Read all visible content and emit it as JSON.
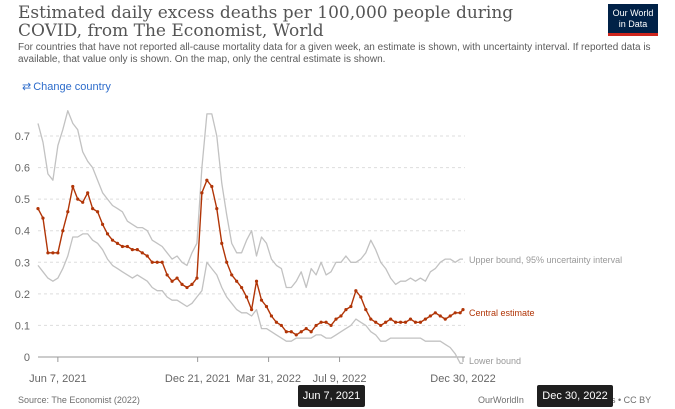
{
  "header": {
    "title": "Estimated daily excess deaths per 100,000 people during COVID, from The Economist, World",
    "subtitle": "For countries that have not reported all-cause mortality data for a given week, an estimate is shown, with uncertainty interval. If reported data is available, that value only is shown. On the map, only the central estimate is shown.",
    "logo_line1": "Our World",
    "logo_line2": "in Data"
  },
  "controls": {
    "change_country": "Change country",
    "change_icon": "swap-arrows-icon"
  },
  "footer": {
    "source": "Source: The Economist (2022)",
    "credit_left": "OurWorldIn",
    "credit_right": "s • CC BY"
  },
  "tooltips": {
    "start": "Jun 7, 2021",
    "end": "Dec 30, 2022"
  },
  "colors": {
    "central": "#b13507",
    "bounds": "#c2c2c2",
    "grid": "#dddddd"
  },
  "chart_data": {
    "type": "line",
    "title": "Estimated daily excess deaths per 100,000 people during COVID, from The Economist, World",
    "xlabel": "",
    "ylabel": "",
    "y_ticks": [
      0,
      0.1,
      0.2,
      0.3,
      0.4,
      0.5,
      0.6,
      0.7
    ],
    "ylim": [
      0,
      0.7
    ],
    "x_ticks": [
      "Jun 7, 2021",
      "Dec 21, 2021",
      "Mar 31, 2022",
      "Jul 9, 2022",
      "Dec 30, 2022"
    ],
    "x_range": [
      "2021-05-10",
      "2022-12-30"
    ],
    "x": [
      "2021-05-10",
      "2021-05-17",
      "2021-05-24",
      "2021-05-31",
      "2021-06-07",
      "2021-06-14",
      "2021-06-21",
      "2021-06-28",
      "2021-07-05",
      "2021-07-12",
      "2021-07-19",
      "2021-07-26",
      "2021-08-02",
      "2021-08-09",
      "2021-08-16",
      "2021-08-23",
      "2021-08-30",
      "2021-09-06",
      "2021-09-13",
      "2021-09-20",
      "2021-09-27",
      "2021-10-04",
      "2021-10-11",
      "2021-10-18",
      "2021-10-25",
      "2021-11-01",
      "2021-11-08",
      "2021-11-15",
      "2021-11-22",
      "2021-11-29",
      "2021-12-06",
      "2021-12-13",
      "2021-12-20",
      "2021-12-27",
      "2022-01-03",
      "2022-01-10",
      "2022-01-17",
      "2022-01-24",
      "2022-01-31",
      "2022-02-07",
      "2022-02-14",
      "2022-02-21",
      "2022-02-28",
      "2022-03-07",
      "2022-03-14",
      "2022-03-21",
      "2022-03-28",
      "2022-04-04",
      "2022-04-11",
      "2022-04-18",
      "2022-04-25",
      "2022-05-02",
      "2022-05-09",
      "2022-05-16",
      "2022-05-23",
      "2022-05-30",
      "2022-06-06",
      "2022-06-13",
      "2022-06-20",
      "2022-06-27",
      "2022-07-04",
      "2022-07-11",
      "2022-07-18",
      "2022-07-25",
      "2022-08-01",
      "2022-08-08",
      "2022-08-15",
      "2022-08-22",
      "2022-08-29",
      "2022-09-05",
      "2022-09-12",
      "2022-09-19",
      "2022-09-26",
      "2022-10-03",
      "2022-10-10",
      "2022-10-17",
      "2022-10-24",
      "2022-10-31",
      "2022-11-07",
      "2022-11-14",
      "2022-11-21",
      "2022-11-28",
      "2022-12-05",
      "2022-12-12",
      "2022-12-19",
      "2022-12-26",
      "2022-12-30"
    ],
    "series": [
      {
        "name": "Upper bound, 95% uncertainty interval",
        "values": [
          0.74,
          0.68,
          0.58,
          0.56,
          0.67,
          0.72,
          0.78,
          0.74,
          0.72,
          0.65,
          0.62,
          0.6,
          0.56,
          0.52,
          0.5,
          0.48,
          0.47,
          0.46,
          0.43,
          0.42,
          0.41,
          0.41,
          0.4,
          0.37,
          0.36,
          0.35,
          0.33,
          0.31,
          0.32,
          0.3,
          0.29,
          0.33,
          0.36,
          0.6,
          0.77,
          0.77,
          0.7,
          0.55,
          0.45,
          0.36,
          0.33,
          0.33,
          0.37,
          0.4,
          0.32,
          0.38,
          0.36,
          0.31,
          0.29,
          0.28,
          0.22,
          0.22,
          0.24,
          0.27,
          0.22,
          0.28,
          0.26,
          0.3,
          0.26,
          0.27,
          0.3,
          0.3,
          0.32,
          0.3,
          0.3,
          0.31,
          0.33,
          0.37,
          0.34,
          0.3,
          0.28,
          0.25,
          0.23,
          0.24,
          0.24,
          0.25,
          0.24,
          0.25,
          0.24,
          0.27,
          0.28,
          0.3,
          0.31,
          0.31,
          0.3,
          0.31,
          0.31
        ]
      },
      {
        "name": "Central estimate",
        "values": [
          0.47,
          0.44,
          0.33,
          0.33,
          0.33,
          0.4,
          0.46,
          0.54,
          0.5,
          0.49,
          0.52,
          0.47,
          0.46,
          0.42,
          0.39,
          0.37,
          0.36,
          0.35,
          0.35,
          0.34,
          0.34,
          0.33,
          0.32,
          0.3,
          0.3,
          0.3,
          0.26,
          0.24,
          0.25,
          0.23,
          0.22,
          0.23,
          0.25,
          0.52,
          0.56,
          0.54,
          0.47,
          0.36,
          0.3,
          0.26,
          0.24,
          0.22,
          0.19,
          0.15,
          0.24,
          0.18,
          0.16,
          0.13,
          0.11,
          0.1,
          0.08,
          0.08,
          0.07,
          0.08,
          0.09,
          0.08,
          0.1,
          0.11,
          0.11,
          0.1,
          0.12,
          0.13,
          0.15,
          0.16,
          0.21,
          0.19,
          0.15,
          0.12,
          0.11,
          0.1,
          0.11,
          0.12,
          0.11,
          0.11,
          0.11,
          0.12,
          0.11,
          0.11,
          0.12,
          0.13,
          0.14,
          0.13,
          0.12,
          0.13,
          0.14,
          0.14,
          0.15
        ]
      },
      {
        "name": "Lower bound",
        "values": [
          0.29,
          0.27,
          0.25,
          0.24,
          0.25,
          0.28,
          0.32,
          0.38,
          0.38,
          0.39,
          0.39,
          0.37,
          0.36,
          0.34,
          0.31,
          0.29,
          0.28,
          0.27,
          0.26,
          0.25,
          0.26,
          0.25,
          0.24,
          0.22,
          0.21,
          0.21,
          0.19,
          0.18,
          0.18,
          0.17,
          0.16,
          0.17,
          0.19,
          0.21,
          0.3,
          0.28,
          0.26,
          0.22,
          0.19,
          0.17,
          0.15,
          0.14,
          0.14,
          0.13,
          0.15,
          0.09,
          0.09,
          0.08,
          0.07,
          0.06,
          0.05,
          0.05,
          0.06,
          0.06,
          0.06,
          0.06,
          0.07,
          0.07,
          0.06,
          0.06,
          0.07,
          0.08,
          0.09,
          0.1,
          0.12,
          0.11,
          0.1,
          0.08,
          0.07,
          0.05,
          0.05,
          0.06,
          0.06,
          0.06,
          0.06,
          0.06,
          0.06,
          0.06,
          0.05,
          0.05,
          0.05,
          0.05,
          0.04,
          0.03,
          0.01,
          -0.02,
          -0.02
        ]
      }
    ]
  }
}
